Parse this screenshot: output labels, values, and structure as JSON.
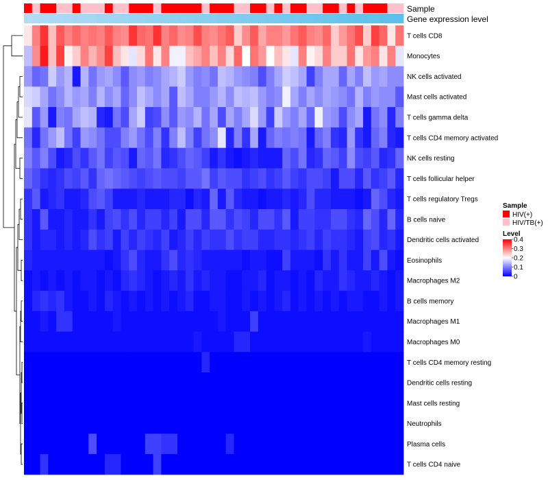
{
  "chart_data": {
    "type": "heatmap",
    "title": "",
    "annotation_tracks": [
      {
        "name": "Sample",
        "label": "Sample"
      },
      {
        "name": "Gene expression level",
        "label": "Gene expression level"
      }
    ],
    "rows": [
      "T cells CD8",
      "Monocytes",
      "NK cells activated",
      "Mast cells activated",
      "T cells gamma delta",
      "T cells CD4 memory activated",
      "NK cells resting",
      "T cells follicular helper",
      "T cells regulatory  Tregs",
      "B cells naive",
      "Dendritic cells activated",
      "Eosinophils",
      "Macrophages M2",
      "B cells memory",
      "Macrophages M1",
      "Macrophages M0",
      "T cells CD4 memory resting",
      "Dendritic cells resting",
      "Mast cells resting",
      "Neutrophils",
      "Plasma cells",
      "T cells CD4 naive"
    ],
    "n_columns": 47,
    "sample_groups": [
      "HIV(+)",
      "HIV/TB(+)"
    ],
    "column_sample": [
      0,
      1,
      0,
      0,
      1,
      1,
      0,
      1,
      1,
      1,
      0,
      1,
      1,
      0,
      0,
      0,
      1,
      0,
      0,
      0,
      0,
      0,
      1,
      0,
      0,
      0,
      1,
      1,
      0,
      0,
      1,
      0,
      1,
      0,
      0,
      1,
      1,
      0,
      0,
      1,
      0,
      1,
      0,
      0,
      0,
      1,
      1
    ],
    "values": [
      [
        0.22,
        0.3,
        0.36,
        0.25,
        0.33,
        0.3,
        0.32,
        0.3,
        0.31,
        0.3,
        0.33,
        0.3,
        0.29,
        0.36,
        0.32,
        0.31,
        0.36,
        0.3,
        0.32,
        0.29,
        0.3,
        0.34,
        0.3,
        0.29,
        0.31,
        0.33,
        0.24,
        0.29,
        0.33,
        0.27,
        0.3,
        0.3,
        0.28,
        0.31,
        0.33,
        0.3,
        0.29,
        0.32,
        0.24,
        0.28,
        0.31,
        0.34,
        0.24,
        0.35,
        0.32,
        0.22,
        0.31
      ],
      [
        0.15,
        0.29,
        0.38,
        0.25,
        0.35,
        0.21,
        0.24,
        0.3,
        0.26,
        0.29,
        0.35,
        0.25,
        0.22,
        0.18,
        0.23,
        0.31,
        0.22,
        0.3,
        0.19,
        0.19,
        0.25,
        0.27,
        0.3,
        0.25,
        0.3,
        0.23,
        0.32,
        0.2,
        0.31,
        0.28,
        0.2,
        0.25,
        0.22,
        0.18,
        0.3,
        0.21,
        0.23,
        0.3,
        0.24,
        0.24,
        0.31,
        0.22,
        0.28,
        0.3,
        0.22,
        0.3,
        0.18
      ],
      [
        0.12,
        0.08,
        0.09,
        0.16,
        0.12,
        0.14,
        0.02,
        0.14,
        0.09,
        0.12,
        0.13,
        0.11,
        0.07,
        0.11,
        0.12,
        0.1,
        0.11,
        0.13,
        0.14,
        0.16,
        0.12,
        0.1,
        0.11,
        0.09,
        0.15,
        0.14,
        0.12,
        0.11,
        0.1,
        0.06,
        0.1,
        0.13,
        0.16,
        0.15,
        0.13,
        0.05,
        0.1,
        0.13,
        0.13,
        0.08,
        0.13,
        0.1,
        0.15,
        0.12,
        0.13,
        0.11,
        0.11
      ],
      [
        0.17,
        0.16,
        0.13,
        0.09,
        0.11,
        0.14,
        0.12,
        0.13,
        0.1,
        0.14,
        0.11,
        0.13,
        0.08,
        0.11,
        0.15,
        0.13,
        0.11,
        0.13,
        0.07,
        0.15,
        0.13,
        0.1,
        0.1,
        0.12,
        0.14,
        0.11,
        0.15,
        0.14,
        0.15,
        0.12,
        0.1,
        0.11,
        0.19,
        0.13,
        0.1,
        0.13,
        0.11,
        0.13,
        0.12,
        0.11,
        0.09,
        0.14,
        0.1,
        0.12,
        0.11,
        0.11,
        0.07
      ],
      [
        0.18,
        0.07,
        0.12,
        0.02,
        0.1,
        0.09,
        0.13,
        0.15,
        0.14,
        0.03,
        0.02,
        0.09,
        0.06,
        0.13,
        0.16,
        0.05,
        0.06,
        0.11,
        0.07,
        0.12,
        0.11,
        0.14,
        0.09,
        0.13,
        0.06,
        0.13,
        0.1,
        0.13,
        0.17,
        0.12,
        0.05,
        0.16,
        0.12,
        0.1,
        0.13,
        0.08,
        0.19,
        0.12,
        0.11,
        0.06,
        0.11,
        0.13,
        0.02,
        0.09,
        0.11,
        0.03,
        0.1
      ],
      [
        0.09,
        0.03,
        0.09,
        0.12,
        0.15,
        0.09,
        0.05,
        0.12,
        0.11,
        0.09,
        0.06,
        0.06,
        0.1,
        0.12,
        0.09,
        0.06,
        0.1,
        0.04,
        0.1,
        0.15,
        0.1,
        0.05,
        0.09,
        0.11,
        0.18,
        0.03,
        0.1,
        0.04,
        0.13,
        0.02,
        0.08,
        0.1,
        0.09,
        0.1,
        0.09,
        0.02,
        0.08,
        0.1,
        0.04,
        0.03,
        0.12,
        0.04,
        0.02,
        0.08,
        0.1,
        0.03,
        0.02
      ],
      [
        0.1,
        0.07,
        0.1,
        0.06,
        0.02,
        0.03,
        0.06,
        0.04,
        0.07,
        0.09,
        0.05,
        0.07,
        0.06,
        0.02,
        0.08,
        0.07,
        0.09,
        0.03,
        0.04,
        0.06,
        0.08,
        0.07,
        0.05,
        0.02,
        0.04,
        0.02,
        0.01,
        0.02,
        0.03,
        0.02,
        0.02,
        0.02,
        0.08,
        0.06,
        0.09,
        0.03,
        0.04,
        0.08,
        0.07,
        0.05,
        0.11,
        0.06,
        0.05,
        0.07,
        0.03,
        0.04,
        0.08
      ],
      [
        0.08,
        0.06,
        0.04,
        0.03,
        0.04,
        0.06,
        0.05,
        0.07,
        0.04,
        0.08,
        0.09,
        0.08,
        0.07,
        0.06,
        0.05,
        0.06,
        0.07,
        0.06,
        0.06,
        0.05,
        0.07,
        0.07,
        0.09,
        0.05,
        0.07,
        0.06,
        0.06,
        0.04,
        0.05,
        0.06,
        0.04,
        0.05,
        0.07,
        0.05,
        0.04,
        0.06,
        0.06,
        0.05,
        0.02,
        0.06,
        0.06,
        0.03,
        0.07,
        0.04,
        0.05,
        0.07,
        0.03
      ],
      [
        0.04,
        0.07,
        0.02,
        0.03,
        0.04,
        0.02,
        0.02,
        0.03,
        0.06,
        0.07,
        0.05,
        0.02,
        0.02,
        0.02,
        0.03,
        0.02,
        0.02,
        0.02,
        0.03,
        0.03,
        0.01,
        0.03,
        0.02,
        0.08,
        0.02,
        0.07,
        0.03,
        0.02,
        0.02,
        0.01,
        0.02,
        0.02,
        0.03,
        0.02,
        0.03,
        0.06,
        0.03,
        0.03,
        0.02,
        0.02,
        0.02,
        0.01,
        0.02,
        0.08,
        0.06,
        0.03,
        0.02
      ],
      [
        0.04,
        0.02,
        0.07,
        0.02,
        0.02,
        0.03,
        0.02,
        0.02,
        0.04,
        0.02,
        0.05,
        0.06,
        0.04,
        0.06,
        0.03,
        0.05,
        0.05,
        0.03,
        0.05,
        0.02,
        0.06,
        0.06,
        0.03,
        0.07,
        0.07,
        0.04,
        0.06,
        0.05,
        0.03,
        0.06,
        0.06,
        0.04,
        0.07,
        0.02,
        0.05,
        0.05,
        0.04,
        0.04,
        0.06,
        0.06,
        0.04,
        0.03,
        0.08,
        0.06,
        0.03,
        0.08,
        0.03
      ],
      [
        0.04,
        0.02,
        0.03,
        0.03,
        0.02,
        0.03,
        0.02,
        0.03,
        0.06,
        0.04,
        0.05,
        0.02,
        0.05,
        0.03,
        0.05,
        0.04,
        0.03,
        0.05,
        0.02,
        0.03,
        0.05,
        0.03,
        0.05,
        0.04,
        0.04,
        0.06,
        0.04,
        0.05,
        0.05,
        0.03,
        0.03,
        0.04,
        0.04,
        0.03,
        0.04,
        0.05,
        0.03,
        0.05,
        0.04,
        0.04,
        0.03,
        0.02,
        0.05,
        0.06,
        0.03,
        0.04,
        0.02
      ],
      [
        0.03,
        0.02,
        0.02,
        0.02,
        0.02,
        0.02,
        0.02,
        0.02,
        0.02,
        0.02,
        0.01,
        0.02,
        0.04,
        0.06,
        0.03,
        0.02,
        0.02,
        0.04,
        0.06,
        0.03,
        0.04,
        0.03,
        0.02,
        0.02,
        0.02,
        0.02,
        0.02,
        0.01,
        0.02,
        0.02,
        0.01,
        0.01,
        0.05,
        0.02,
        0.02,
        0.02,
        0.01,
        0.04,
        0.02,
        0.04,
        0.02,
        0.02,
        0.05,
        0.02,
        0.06,
        0.02,
        0.01
      ],
      [
        0.01,
        0.02,
        0.01,
        0.02,
        0.01,
        0.02,
        0.01,
        0.02,
        0.02,
        0.01,
        0.02,
        0.01,
        0.03,
        0.04,
        0.03,
        0.02,
        0.01,
        0.02,
        0.03,
        0.02,
        0.04,
        0.02,
        0.03,
        0.02,
        0.02,
        0.01,
        0.01,
        0.02,
        0.02,
        0.03,
        0.01,
        0.02,
        0.02,
        0.01,
        0.02,
        0.01,
        0.03,
        0.02,
        0.02,
        0.04,
        0.03,
        0.02,
        0.02,
        0.03,
        0.02,
        0.01,
        0.02
      ],
      [
        0.01,
        0.03,
        0.04,
        0.03,
        0.04,
        0.02,
        0.01,
        0.01,
        0.02,
        0.01,
        0.03,
        0.02,
        0.01,
        0.02,
        0.01,
        0.02,
        0.01,
        0.02,
        0.01,
        0.02,
        0.03,
        0.01,
        0.01,
        0.02,
        0.02,
        0.01,
        0.01,
        0.02,
        0.01,
        0.02,
        0.01,
        0.02,
        0.03,
        0.01,
        0.02,
        0.01,
        0.02,
        0.01,
        0.02,
        0.01,
        0.02,
        0.02,
        0.01,
        0.01,
        0.02,
        0.01,
        0.02
      ],
      [
        0.01,
        0.01,
        0.02,
        0.01,
        0.04,
        0.04,
        0.01,
        0.01,
        0.01,
        0.01,
        0.01,
        0.02,
        0.01,
        0.01,
        0.01,
        0.01,
        0.01,
        0.01,
        0.01,
        0.01,
        0.01,
        0.01,
        0.01,
        0.01,
        0.02,
        0.01,
        0.01,
        0.01,
        0.05,
        0.01,
        0.01,
        0.01,
        0.01,
        0.01,
        0.01,
        0.01,
        0.01,
        0.01,
        0.01,
        0.01,
        0.01,
        0.01,
        0.01,
        0.01,
        0.01,
        0.01,
        0.01
      ],
      [
        0.01,
        0.01,
        0.01,
        0.01,
        0.01,
        0.01,
        0.01,
        0.01,
        0.01,
        0.01,
        0.01,
        0.01,
        0.01,
        0.01,
        0.01,
        0.01,
        0.01,
        0.01,
        0.01,
        0.01,
        0.01,
        0.02,
        0.01,
        0.01,
        0.01,
        0.01,
        0.03,
        0.03,
        0.01,
        0.01,
        0.01,
        0.01,
        0.01,
        0.01,
        0.01,
        0.01,
        0.01,
        0.01,
        0.01,
        0.01,
        0.01,
        0.01,
        0.02,
        0.01,
        0.01,
        0.01,
        0.01
      ],
      [
        0,
        0,
        0,
        0,
        0,
        0,
        0,
        0,
        0,
        0,
        0,
        0,
        0,
        0,
        0,
        0,
        0,
        0,
        0,
        0,
        0,
        0,
        0.03,
        0,
        0,
        0,
        0,
        0,
        0,
        0,
        0,
        0,
        0,
        0,
        0,
        0,
        0,
        0,
        0,
        0,
        0,
        0,
        0,
        0,
        0,
        0,
        0
      ],
      [
        0,
        0,
        0,
        0,
        0,
        0,
        0,
        0,
        0,
        0,
        0,
        0,
        0,
        0,
        0,
        0,
        0,
        0,
        0,
        0,
        0,
        0,
        0,
        0,
        0,
        0,
        0,
        0,
        0,
        0,
        0,
        0,
        0,
        0,
        0,
        0,
        0,
        0,
        0,
        0,
        0,
        0,
        0,
        0,
        0,
        0,
        0
      ],
      [
        0,
        0,
        0,
        0,
        0,
        0,
        0,
        0,
        0,
        0,
        0,
        0,
        0,
        0,
        0,
        0,
        0,
        0,
        0,
        0,
        0,
        0,
        0,
        0,
        0,
        0,
        0,
        0,
        0,
        0,
        0,
        0,
        0,
        0,
        0,
        0,
        0,
        0,
        0,
        0,
        0,
        0,
        0,
        0,
        0,
        0,
        0
      ],
      [
        0,
        0,
        0,
        0,
        0,
        0,
        0,
        0,
        0,
        0,
        0,
        0,
        0,
        0,
        0,
        0,
        0,
        0,
        0,
        0,
        0,
        0,
        0,
        0,
        0,
        0,
        0,
        0,
        0,
        0,
        0,
        0,
        0,
        0,
        0,
        0,
        0,
        0,
        0,
        0,
        0,
        0,
        0,
        0,
        0,
        0,
        0
      ],
      [
        0,
        0,
        0,
        0,
        0,
        0,
        0,
        0,
        0.06,
        0,
        0,
        0,
        0,
        0,
        0,
        0.05,
        0.05,
        0.04,
        0.04,
        0,
        0,
        0,
        0,
        0,
        0,
        0.03,
        0,
        0,
        0,
        0,
        0,
        0,
        0,
        0,
        0,
        0,
        0,
        0,
        0,
        0,
        0,
        0,
        0,
        0,
        0,
        0,
        0
      ],
      [
        0,
        0,
        0.04,
        0,
        0,
        0,
        0,
        0,
        0,
        0,
        0.03,
        0.03,
        0,
        0,
        0,
        0,
        0.05,
        0,
        0,
        0,
        0,
        0,
        0,
        0,
        0,
        0,
        0,
        0,
        0,
        0,
        0,
        0,
        0,
        0,
        0,
        0,
        0,
        0,
        0,
        0,
        0,
        0,
        0,
        0,
        0,
        0,
        0
      ]
    ],
    "color_scale": {
      "min": 0,
      "max": 0.4,
      "low": "#0000ff",
      "mid": "#ffffff",
      "mid_value": 0.2,
      "high": "#ff0000"
    },
    "sample_colors": {
      "HIV(+)": "#ff0000",
      "HIV/TB(+)": "#ffc0cb"
    },
    "gene_expression_color": "#5bc0eb",
    "legend": {
      "sample_title": "Sample",
      "level_title": "Level",
      "level_ticks": [
        "0.4",
        "0.3",
        "0.2",
        "0.1",
        "0"
      ],
      "level_tick_values": [
        0.4,
        0.3,
        0.2,
        0.1,
        0
      ]
    }
  }
}
